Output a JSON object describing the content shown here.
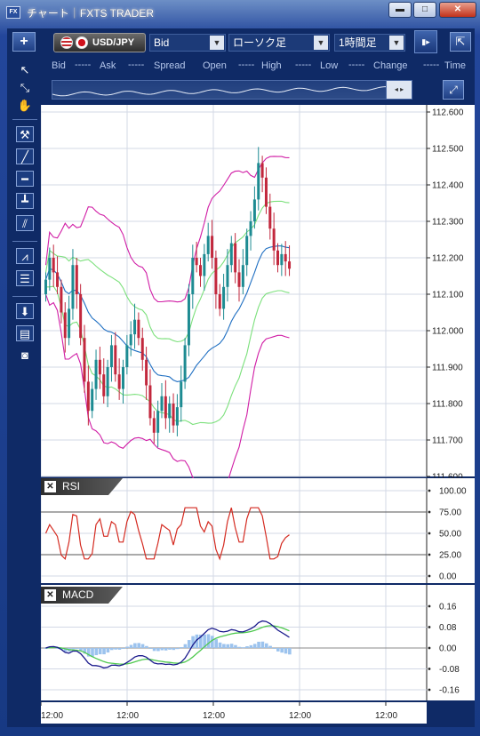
{
  "window": {
    "icon_text": "FX",
    "title": "チャート｜FXTS TRADER",
    "minimize_glyph": "▬",
    "maximize_glyph": "□",
    "close_glyph": "✕"
  },
  "toolbar": {
    "add_glyph": "+",
    "symbol": "USD/JPY",
    "price_type": "Bid",
    "chart_type": "ローソク足",
    "timeframe": "1時間足",
    "dropdown_glyph": "▼",
    "scroll_glyph": "▮▸",
    "expand_glyph": "⇱"
  },
  "left_tools": [
    {
      "name": "pointer-arrow-icon",
      "glyph": "↖",
      "boxed": false
    },
    {
      "name": "crosshair-pointer-icon",
      "glyph": "⤡",
      "boxed": false
    },
    {
      "name": "hand-pan-icon",
      "glyph": "✋",
      "boxed": false
    },
    {
      "name": "separator",
      "glyph": "",
      "boxed": false
    },
    {
      "name": "hammer-icon",
      "glyph": "⚒",
      "boxed": true
    },
    {
      "name": "trend-line-icon",
      "glyph": "╱",
      "boxed": true
    },
    {
      "name": "horizontal-line-icon",
      "glyph": "━",
      "boxed": true
    },
    {
      "name": "vertical-line-icon",
      "glyph": "┻",
      "boxed": true
    },
    {
      "name": "parallel-channel-icon",
      "glyph": "⫽",
      "boxed": true
    },
    {
      "name": "separator",
      "glyph": "",
      "boxed": false
    },
    {
      "name": "fan-lines-icon",
      "glyph": "⩘",
      "boxed": true
    },
    {
      "name": "fibonacci-retracement-icon",
      "glyph": "☰",
      "boxed": true
    },
    {
      "name": "separator",
      "glyph": "",
      "boxed": false
    },
    {
      "name": "download-arrow-icon",
      "glyph": "⬇",
      "boxed": true
    },
    {
      "name": "list-icon",
      "glyph": "▤",
      "boxed": true
    },
    {
      "name": "camera-icon",
      "glyph": "◙",
      "boxed": false
    }
  ],
  "info_bar": {
    "labels": [
      "Bid",
      "Ask",
      "Spread",
      "Open",
      "High",
      "Low",
      "Change",
      "Time"
    ],
    "value_placeholder": "-----"
  },
  "main_chart": {
    "y_labels": [
      "112.600",
      "112.500",
      "112.400",
      "112.300",
      "112.200",
      "112.100",
      "112.000",
      "111.900",
      "111.800",
      "111.700",
      "111.600"
    ],
    "ylim": [
      111.6,
      112.6
    ]
  },
  "rsi_panel": {
    "title": "RSI",
    "y_labels": [
      "100.00",
      "75.00",
      "50.00",
      "25.00",
      "0.00"
    ]
  },
  "macd_panel": {
    "title": "MACD",
    "y_labels": [
      "0.16",
      "0.08",
      "0.00",
      "-0.08",
      "-0.16"
    ]
  },
  "x_axis": {
    "labels": [
      "12:00",
      "12:00",
      "12:00",
      "12:00",
      "12:00"
    ]
  },
  "colors": {
    "background": "#ffffff",
    "grid": "#d3d8e6",
    "candle_up": "#1d8b92",
    "candle_down": "#c2283d",
    "bollinger_outer": "#d01ca5",
    "bollinger_inner": "#7be07b",
    "bollinger_mid": "#1f6fc2",
    "rsi_line": "#d42a20",
    "macd_line": "#1a1a8c",
    "signal_line": "#4ec94e",
    "histogram": "#9cc3ee"
  }
}
